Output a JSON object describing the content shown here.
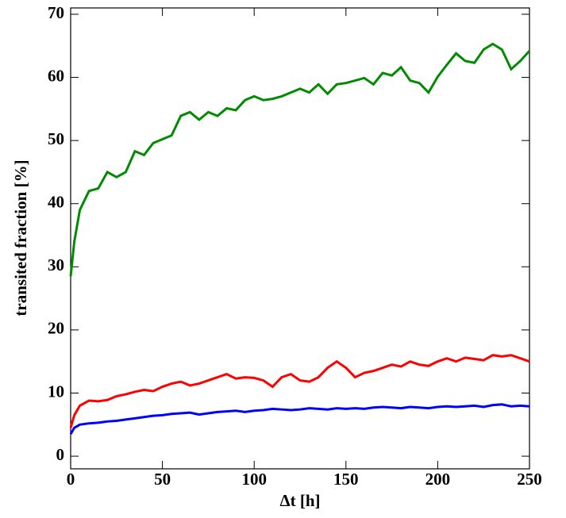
{
  "chart_data": {
    "type": "line",
    "xlabel": "Δt [h]",
    "ylabel": "transited fraction [%]",
    "x": [
      0,
      2,
      5,
      10,
      15,
      20,
      25,
      30,
      35,
      40,
      45,
      50,
      55,
      60,
      65,
      70,
      75,
      80,
      85,
      90,
      95,
      100,
      105,
      110,
      115,
      120,
      125,
      130,
      135,
      140,
      145,
      150,
      155,
      160,
      165,
      170,
      175,
      180,
      185,
      190,
      195,
      200,
      205,
      210,
      215,
      220,
      225,
      230,
      235,
      240,
      245,
      250
    ],
    "series": [
      {
        "color": "#008b00",
        "values": [
          28.5,
          34,
          39,
          42,
          42.4,
          45,
          44.2,
          45,
          48.3,
          47.7,
          49.6,
          50.2,
          50.8,
          53.9,
          54.5,
          53.3,
          54.5,
          53.9,
          55.1,
          54.8,
          56.4,
          57,
          56.4,
          56.6,
          57,
          57.6,
          58.2,
          57.6,
          58.9,
          57.4,
          58.9,
          59.1,
          59.5,
          59.9,
          58.9,
          60.7,
          60.3,
          61.6,
          59.5,
          59.1,
          57.6,
          60.1,
          62,
          63.8,
          62.6,
          62.3,
          64.4,
          65.3,
          64.4,
          61.3,
          62.6,
          64.2
        ]
      },
      {
        "color": "#ff0000",
        "values": [
          4.5,
          6.5,
          8,
          8.8,
          8.7,
          8.9,
          9.5,
          9.8,
          10.2,
          10.5,
          10.3,
          11,
          11.5,
          11.8,
          11.2,
          11.5,
          12,
          12.5,
          13,
          12.3,
          12.5,
          12.4,
          12,
          11,
          12.5,
          13,
          12,
          11.8,
          12.5,
          14,
          15,
          14,
          12.5,
          13.2,
          13.5,
          14,
          14.5,
          14.2,
          15,
          14.5,
          14.3,
          15,
          15.5,
          15,
          15.6,
          15.4,
          15.2,
          16,
          15.8,
          16,
          15.5,
          15
        ]
      },
      {
        "color": "#0000ff",
        "values": [
          3.5,
          4.5,
          5,
          5.2,
          5.3,
          5.5,
          5.6,
          5.8,
          6,
          6.2,
          6.4,
          6.5,
          6.7,
          6.8,
          6.9,
          6.6,
          6.8,
          7,
          7.1,
          7.2,
          7,
          7.2,
          7.3,
          7.5,
          7.4,
          7.3,
          7.4,
          7.6,
          7.5,
          7.4,
          7.6,
          7.5,
          7.6,
          7.5,
          7.7,
          7.8,
          7.7,
          7.6,
          7.8,
          7.7,
          7.6,
          7.8,
          7.9,
          7.8,
          7.9,
          8,
          7.8,
          8.1,
          8.2,
          7.9,
          8,
          7.9
        ]
      }
    ],
    "xlim": [
      0,
      250
    ],
    "xticks": [
      0,
      50,
      100,
      150,
      200,
      250
    ],
    "ylim": [
      -2,
      71
    ],
    "yticks": [
      0,
      10,
      20,
      30,
      40,
      50,
      60,
      70
    ]
  }
}
